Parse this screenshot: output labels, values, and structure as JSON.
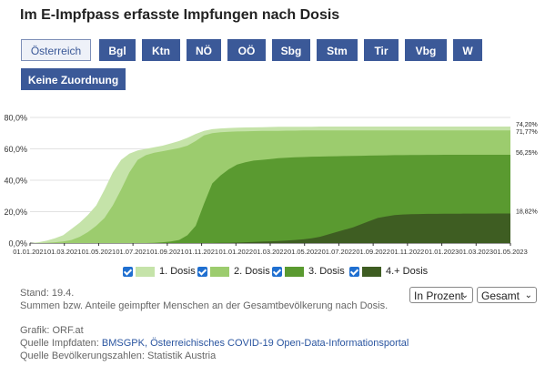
{
  "title": "Im E-Impfpass erfasste Impfungen nach Dosis",
  "regions": [
    {
      "label": "Österreich",
      "selected": true
    },
    {
      "label": "Bgl",
      "selected": false
    },
    {
      "label": "Ktn",
      "selected": false
    },
    {
      "label": "NÖ",
      "selected": false
    },
    {
      "label": "OÖ",
      "selected": false
    },
    {
      "label": "Sbg",
      "selected": false
    },
    {
      "label": "Stm",
      "selected": false
    },
    {
      "label": "Tir",
      "selected": false
    },
    {
      "label": "Vbg",
      "selected": false
    },
    {
      "label": "W",
      "selected": false
    },
    {
      "label": "Keine Zuordnung",
      "selected": false
    }
  ],
  "colors": {
    "accent": "#3b5998",
    "dose1": "#c5e3a9",
    "dose2": "#9ccc6e",
    "dose3": "#5a9a30",
    "dose4": "#3e5d22"
  },
  "chart_data": {
    "type": "area",
    "ylim": [
      0,
      80
    ],
    "y_ticks": [
      "0,0%",
      "20,0%",
      "40,0%",
      "60,0%",
      "80,0%"
    ],
    "x_ticks": [
      "01.01.2021",
      "01.03.2021",
      "01.05.2021",
      "01.07.2021",
      "01.09.2021",
      "01.11.2021",
      "01.01.2022",
      "01.03.2022",
      "01.05.2022",
      "01.07.2022",
      "01.09.2022",
      "01.11.2022",
      "01.01.2023",
      "01.03.2023",
      "01.05.2023"
    ],
    "x": [
      0,
      1,
      2,
      3,
      4,
      5,
      6,
      7,
      8,
      9,
      10,
      11,
      12,
      13,
      14,
      15,
      16,
      17,
      18,
      19,
      20,
      21,
      22,
      23,
      24,
      25,
      26,
      27,
      28,
      29,
      30,
      31,
      32,
      33,
      34,
      35,
      36,
      37,
      38,
      39,
      40,
      41,
      42,
      43,
      44,
      45,
      46,
      47,
      48,
      49,
      50,
      51,
      52,
      53,
      54,
      55,
      56,
      57,
      58
    ],
    "series": [
      {
        "name": "1. Dosis",
        "end_label": "74,20%",
        "values": [
          0,
          0.5,
          1.5,
          3,
          5,
          9,
          13,
          18,
          24,
          34,
          45,
          53,
          57,
          59,
          60,
          61,
          62,
          63.5,
          65,
          67,
          69.5,
          71.5,
          72.5,
          73,
          73.3,
          73.5,
          73.6,
          73.7,
          73.8,
          73.9,
          74,
          74,
          74.1,
          74.1,
          74.1,
          74.2,
          74.2,
          74.2,
          74.2,
          74.2,
          74.2,
          74.2,
          74.2,
          74.2,
          74.2,
          74.2,
          74.2,
          74.2,
          74.2,
          74.2,
          74.2,
          74.2,
          74.2,
          74.2,
          74.2,
          74.2,
          74.2,
          74.2,
          74.2
        ]
      },
      {
        "name": "2. Dosis",
        "end_label": "71,77%",
        "values": [
          0,
          0,
          0.2,
          0.5,
          1,
          2,
          4,
          7,
          11,
          16,
          24,
          34,
          45,
          53,
          56,
          57.5,
          58.5,
          59.5,
          60.5,
          62,
          65,
          68.5,
          70,
          70.6,
          70.9,
          71.1,
          71.2,
          71.3,
          71.4,
          71.5,
          71.5,
          71.6,
          71.6,
          71.7,
          71.7,
          71.7,
          71.7,
          71.77,
          71.77,
          71.77,
          71.77,
          71.77,
          71.77,
          71.77,
          71.77,
          71.77,
          71.77,
          71.77,
          71.77,
          71.77,
          71.77,
          71.77,
          71.77,
          71.77,
          71.77,
          71.77,
          71.77,
          71.77,
          71.77
        ]
      },
      {
        "name": "3. Dosis",
        "end_label": "56,25%",
        "values": [
          0,
          0,
          0,
          0,
          0,
          0,
          0,
          0,
          0,
          0,
          0,
          0,
          0,
          0,
          0,
          0.2,
          0.5,
          1,
          2,
          5,
          11,
          25,
          38,
          43,
          47,
          50,
          51.5,
          52.5,
          53,
          53.5,
          54,
          54.3,
          54.6,
          54.8,
          55,
          55.1,
          55.2,
          55.3,
          55.4,
          55.5,
          55.6,
          55.7,
          55.8,
          55.9,
          56,
          56,
          56.1,
          56.1,
          56.2,
          56.2,
          56.25,
          56.25,
          56.25,
          56.25,
          56.25,
          56.25,
          56.25,
          56.25,
          56.25
        ]
      },
      {
        "name": "4.+ Dosis",
        "end_label": "18,82%",
        "values": [
          0,
          0,
          0,
          0,
          0,
          0,
          0,
          0,
          0,
          0,
          0,
          0,
          0,
          0,
          0,
          0,
          0,
          0,
          0,
          0,
          0,
          0,
          0,
          0.1,
          0.2,
          0.3,
          0.5,
          0.7,
          0.9,
          1.1,
          1.3,
          1.6,
          2,
          2.4,
          3,
          4,
          5.5,
          7,
          8.5,
          10,
          12,
          14,
          16,
          17,
          17.8,
          18.2,
          18.4,
          18.5,
          18.6,
          18.6,
          18.7,
          18.7,
          18.7,
          18.8,
          18.8,
          18.8,
          18.82,
          18.82,
          18.82
        ]
      }
    ]
  },
  "legend": [
    {
      "label": "1. Dosis"
    },
    {
      "label": "2. Dosis"
    },
    {
      "label": "3. Dosis"
    },
    {
      "label": "4.+ Dosis"
    }
  ],
  "stand": "Stand: 19.4.",
  "description": "Summen bzw. Anteile geimpfter Menschen an der Gesamtbevölkerung nach Dosis.",
  "controls": {
    "mode": "In Prozent",
    "scope": "Gesamt",
    "arrow": "⌄"
  },
  "credits": {
    "grafik": "Grafik: ORF.at",
    "impf_prefix": "Quelle Impfdaten: ",
    "impf_link": "BMSGPK, Österreichisches COVID-19 Open-Data-Informationsportal",
    "bev": "Quelle Bevölkerungszahlen: Statistik Austria"
  }
}
